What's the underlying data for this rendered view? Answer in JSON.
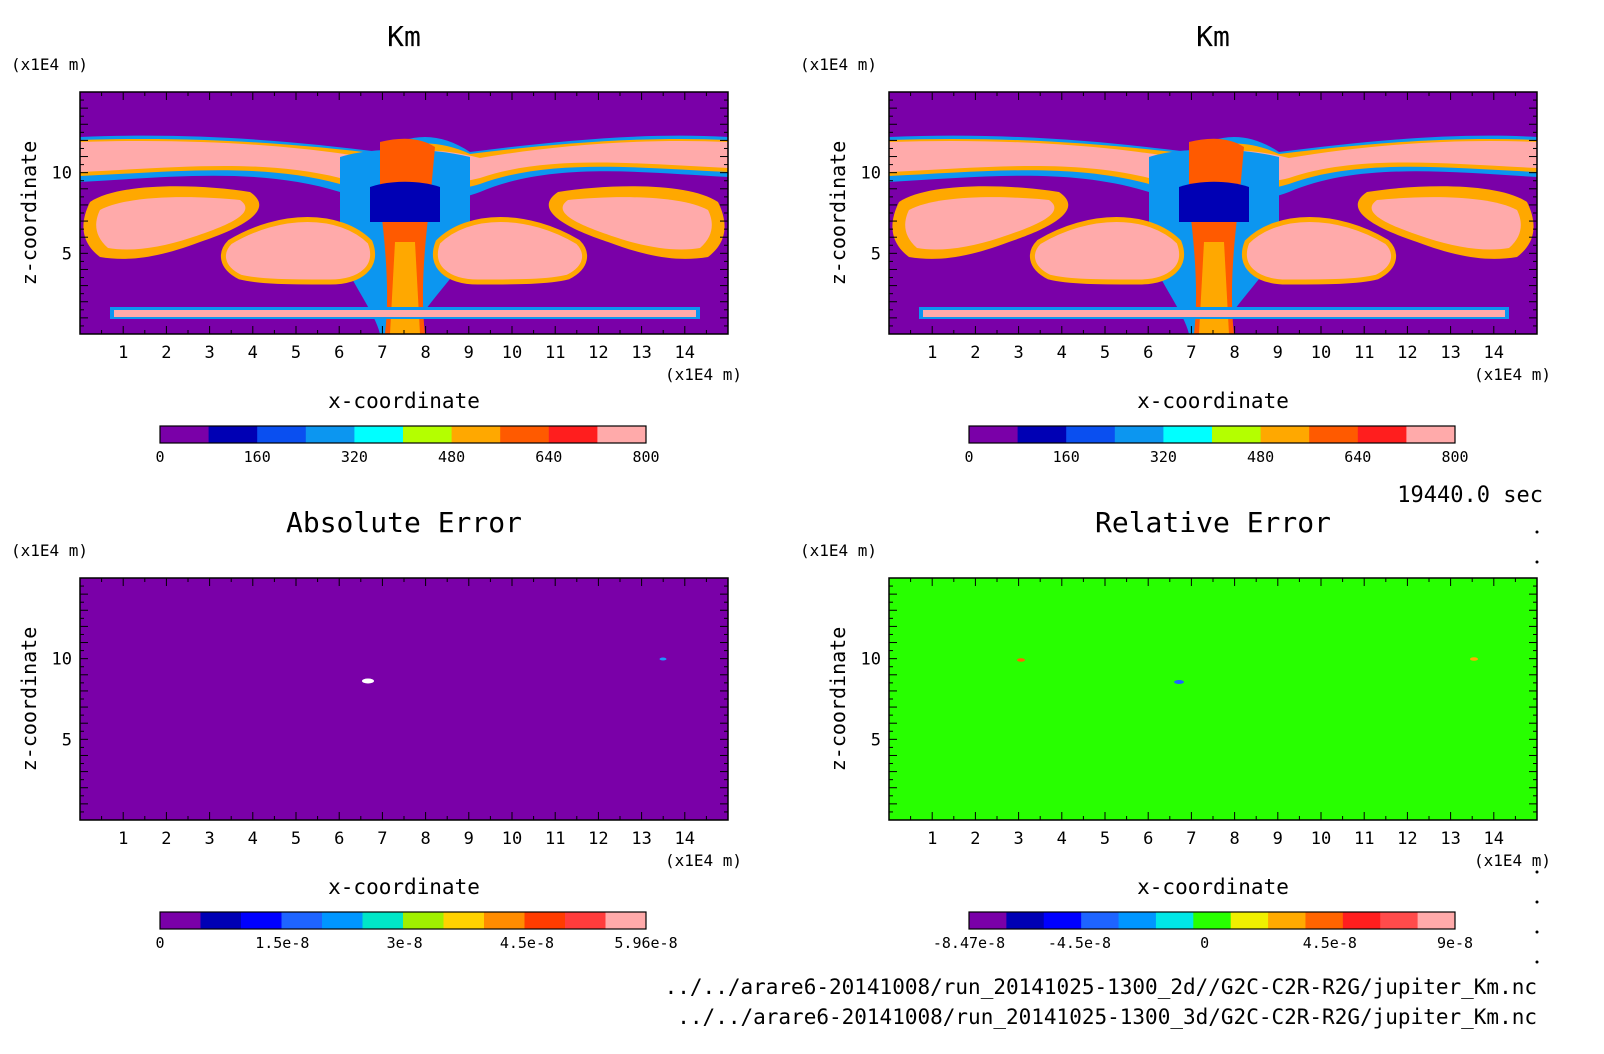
{
  "colors": {
    "pastel": [
      "#7a00a8",
      "#0000b4",
      "#0a4ff0",
      "#0c96f0",
      "#00ffff",
      "#b4ff00",
      "#ffa800",
      "#ff5a00",
      "#ff1e1e",
      "#ffaaaa"
    ],
    "error": [
      "#7a00a8",
      "#0000b4",
      "#0000ff",
      "#1e64ff",
      "#0096ff",
      "#00e6c8",
      "#a0f000",
      "#ffd200",
      "#ff8c00",
      "#ff3c00",
      "#ff3c3c",
      "#ffaaaa"
    ],
    "relerr": [
      "#7a00a8",
      "#0000b4",
      "#0000ff",
      "#1e64ff",
      "#0096ff",
      "#00e6e6",
      "#28ff00",
      "#f0f000",
      "#ffaa00",
      "#ff6400",
      "#ff1e1e",
      "#ff4b4b",
      "#ffaaaa"
    ],
    "green_field": "#28ff00",
    "purple_field": "#7a00a8"
  },
  "footer": {
    "time": "19440.0 sec",
    "path1": "../../arare6-20141008/run_20141025-1300_2d//G2C-C2R-R2G/jupiter_Km.nc",
    "path2": "../../arare6-20141008/run_20141025-1300_3d/G2C-C2R-R2G/jupiter_Km.nc"
  },
  "chart_data": [
    {
      "type": "heatmap",
      "title": "Km",
      "xlabel": "x-coordinate",
      "ylabel": "z-coordinate",
      "x_unit": "(x1E4 m)",
      "y_unit": "(x1E4 m)",
      "xlim": [
        0,
        15
      ],
      "ylim": [
        0,
        15
      ],
      "xticks": [
        "1",
        "2",
        "3",
        "4",
        "5",
        "6",
        "7",
        "8",
        "9",
        "10",
        "11",
        "12",
        "13",
        "14"
      ],
      "yticks": [
        "5",
        "10"
      ],
      "colorbar": {
        "min": 0,
        "max": 800,
        "levels": 10,
        "tick_labels": [
          "0",
          "160",
          "320",
          "480",
          "640",
          "800"
        ]
      },
      "field": "2d run eddy viscosity Km, range 0–800"
    },
    {
      "type": "heatmap",
      "title": "Km",
      "xlabel": "x-coordinate",
      "ylabel": "z-coordinate",
      "x_unit": "(x1E4 m)",
      "y_unit": "(x1E4 m)",
      "xlim": [
        0,
        15
      ],
      "ylim": [
        0,
        15
      ],
      "xticks": [
        "1",
        "2",
        "3",
        "4",
        "5",
        "6",
        "7",
        "8",
        "9",
        "10",
        "11",
        "12",
        "13",
        "14"
      ],
      "yticks": [
        "5",
        "10"
      ],
      "colorbar": {
        "min": 0,
        "max": 800,
        "levels": 10,
        "tick_labels": [
          "0",
          "160",
          "320",
          "480",
          "640",
          "800"
        ]
      },
      "field": "3d run eddy viscosity Km, range 0–800"
    },
    {
      "type": "heatmap",
      "title": "Absolute Error",
      "xlabel": "x-coordinate",
      "ylabel": "z-coordinate",
      "x_unit": "(x1E4 m)",
      "y_unit": "(x1E4 m)",
      "xlim": [
        0,
        15
      ],
      "ylim": [
        0,
        15
      ],
      "xticks": [
        "1",
        "2",
        "3",
        "4",
        "5",
        "6",
        "7",
        "8",
        "9",
        "10",
        "11",
        "12",
        "13",
        "14"
      ],
      "yticks": [
        "5",
        "10"
      ],
      "colorbar": {
        "min": 0,
        "max": 5.96e-08,
        "levels": 12,
        "tick_labels": [
          "0",
          "1.5e-8",
          "3e-8",
          "4.5e-8",
          "5.96e-8"
        ]
      },
      "field": "almost uniformly 0; small spots near (6.7, 8.6) and (13.5, 9.9)"
    },
    {
      "type": "heatmap",
      "title": "Relative Error",
      "xlabel": "x-coordinate",
      "ylabel": "z-coordinate",
      "x_unit": "(x1E4 m)",
      "y_unit": "(x1E4 m)",
      "xlim": [
        0,
        15
      ],
      "ylim": [
        0,
        15
      ],
      "xticks": [
        "1",
        "2",
        "3",
        "4",
        "5",
        "6",
        "7",
        "8",
        "9",
        "10",
        "11",
        "12",
        "13",
        "14"
      ],
      "yticks": [
        "5",
        "10"
      ],
      "colorbar": {
        "min": -8.47e-08,
        "max": 9e-08,
        "levels": 13,
        "tick_labels": [
          "-8.47e-8",
          "-4.5e-8",
          "0",
          "4.5e-8",
          "9e-8"
        ]
      },
      "field": "almost uniformly 0; small spots near (3.0, 9.9), (6.7, 8.6) and (13.5, 9.9)"
    }
  ]
}
